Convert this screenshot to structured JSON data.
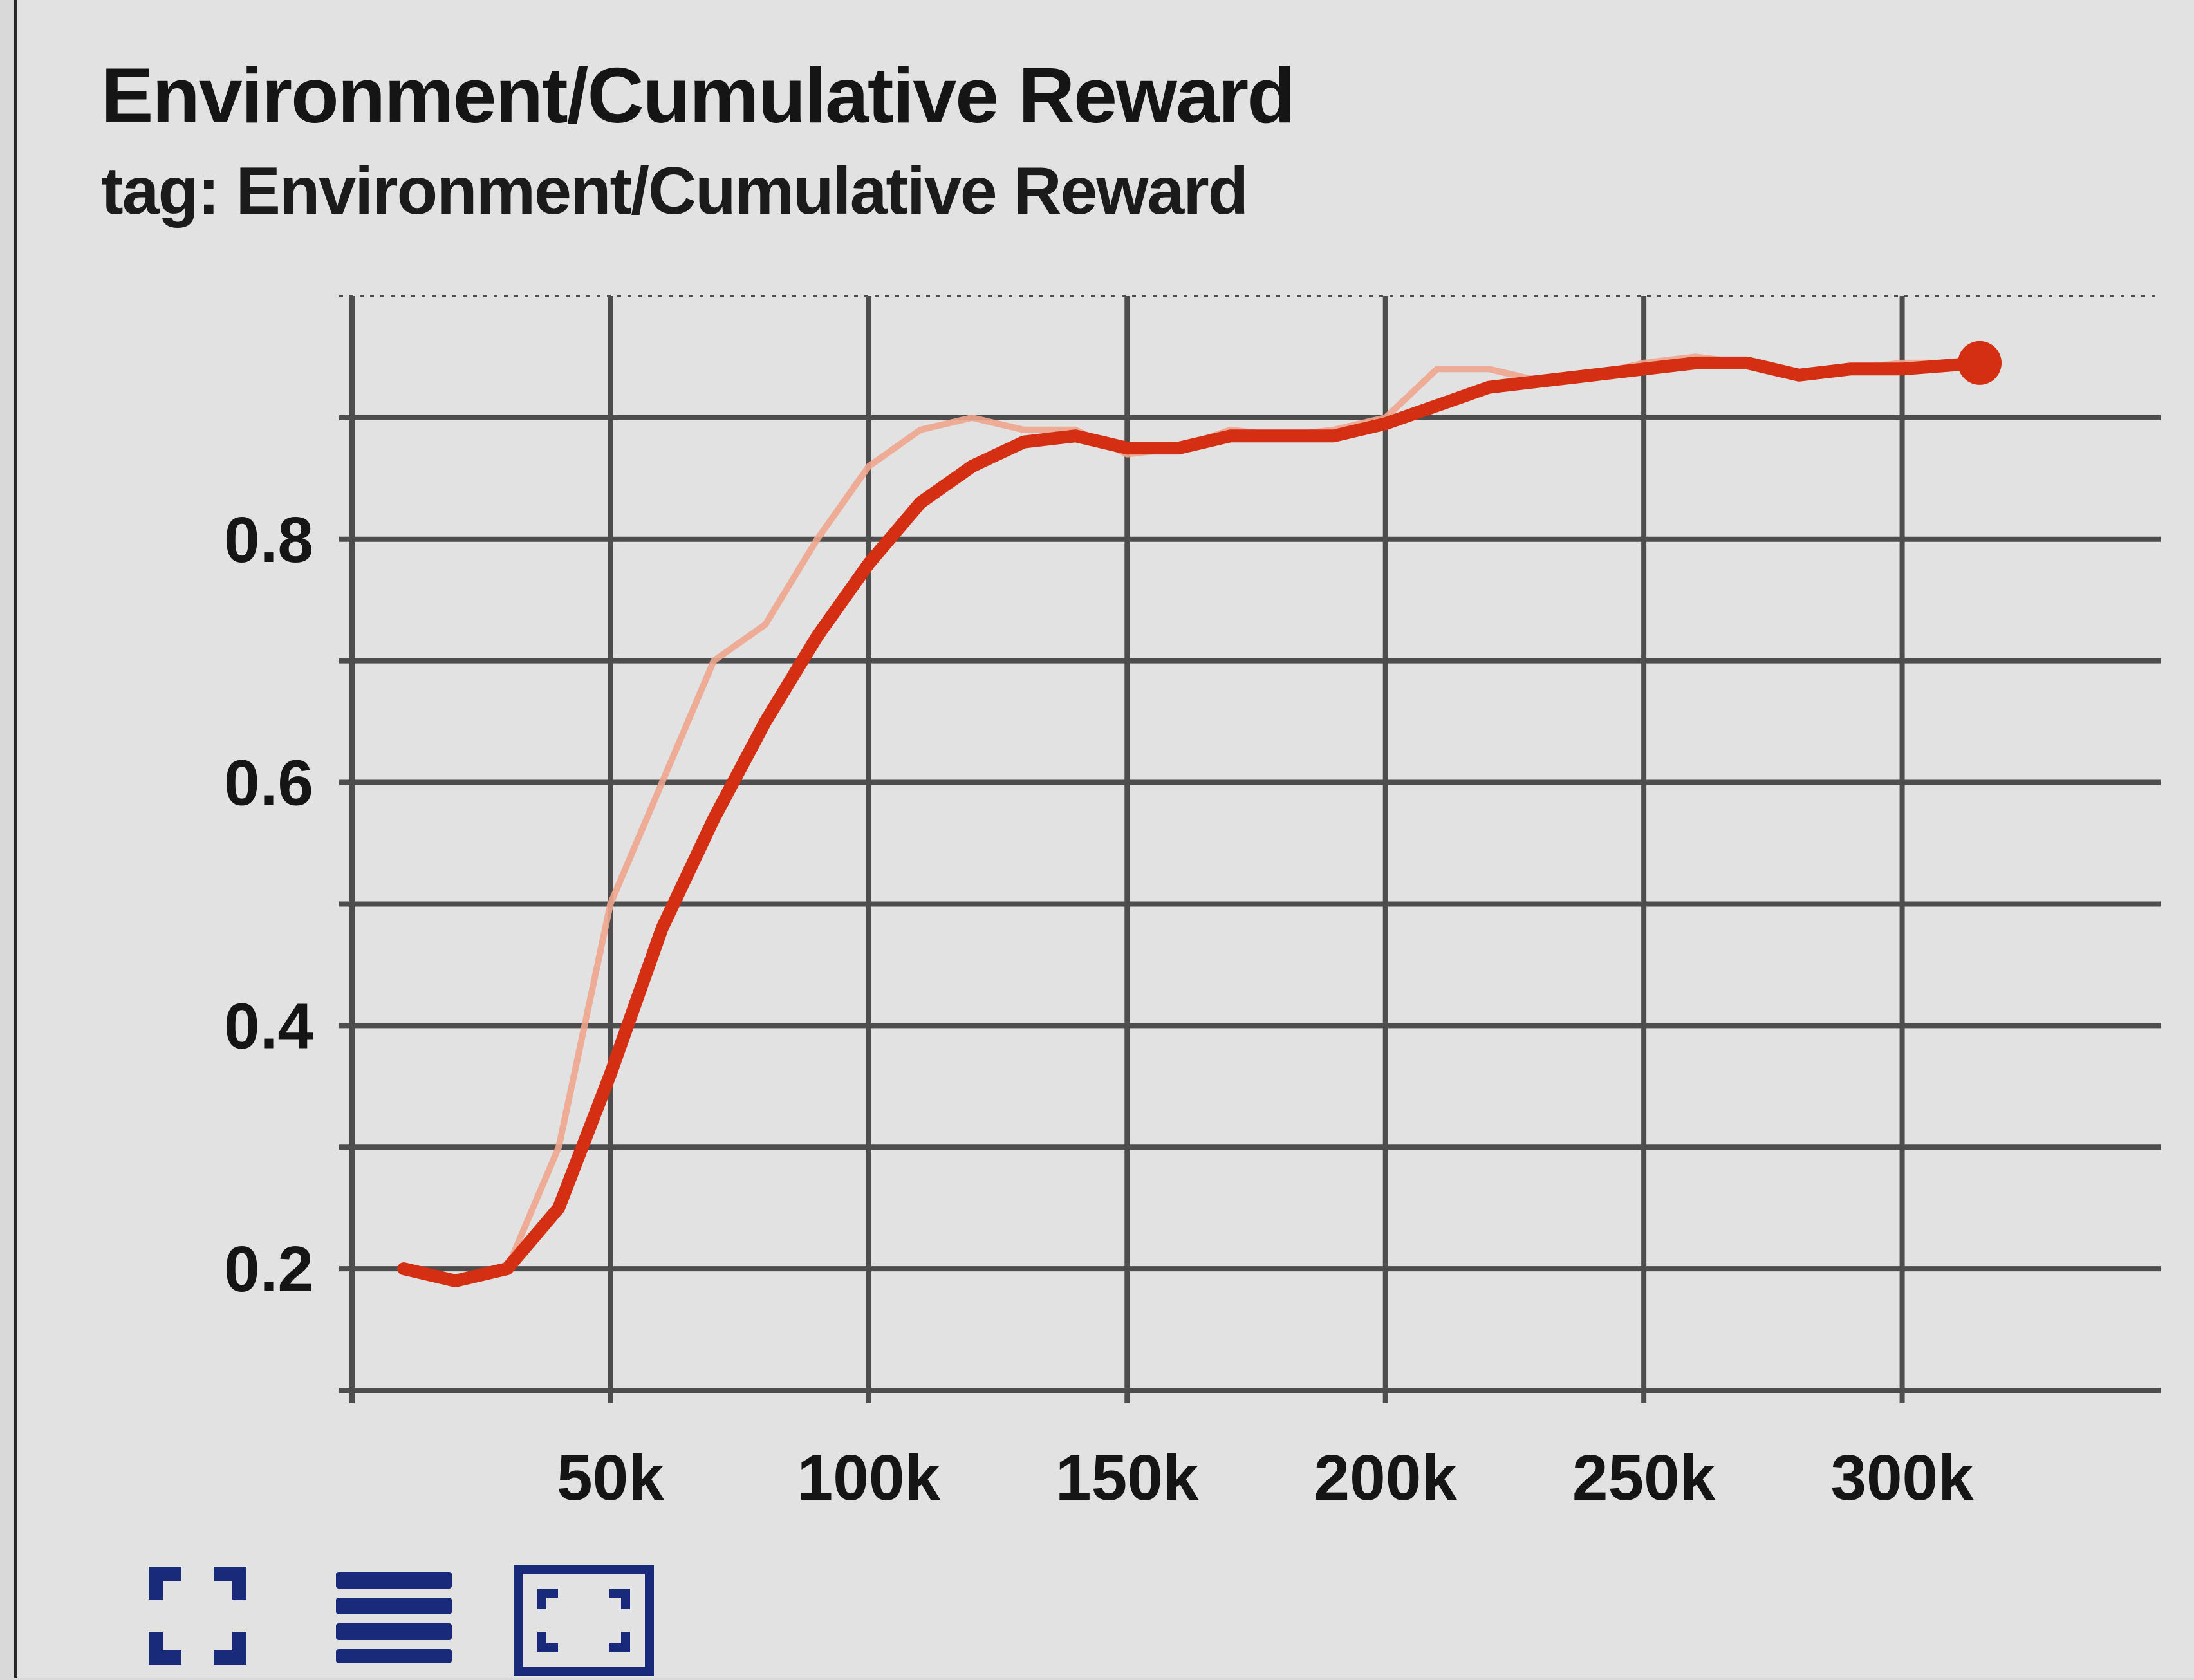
{
  "card": {
    "title": "Environment/Cumulative Reward",
    "subtitle": "tag: Environment/Cumulative Reward"
  },
  "toolbar": {
    "buttons": [
      {
        "icon": "expand-icon"
      },
      {
        "icon": "list-icon"
      },
      {
        "icon": "fit-domain-icon"
      }
    ]
  },
  "colors": {
    "smoothed": "#d42f12",
    "raw": "#f0a58e",
    "grid": "#4d4d4d",
    "icon": "#1a2a7a"
  },
  "chart_data": {
    "type": "line",
    "title": "Environment/Cumulative Reward",
    "xlim": [
      0,
      350000
    ],
    "ylim": [
      0.1,
      1.0
    ],
    "x_ticks": [
      50000,
      100000,
      150000,
      200000,
      250000,
      300000
    ],
    "x_tick_labels": [
      "50k",
      "100k",
      "150k",
      "200k",
      "250k",
      "300k"
    ],
    "y_ticks": [
      0.2,
      0.4,
      0.6,
      0.8
    ],
    "y_tick_labels": [
      "0.2",
      "0.4",
      "0.6",
      "0.8"
    ],
    "grid": true,
    "series": [
      {
        "style": "raw",
        "x": [
          10000,
          20000,
          30000,
          40000,
          50000,
          60000,
          70000,
          80000,
          90000,
          100000,
          110000,
          120000,
          130000,
          140000,
          150000,
          160000,
          170000,
          180000,
          190000,
          200000,
          210000,
          220000,
          230000,
          240000,
          250000,
          260000,
          270000,
          280000,
          290000,
          300000,
          315000
        ],
        "y": [
          0.2,
          0.19,
          0.2,
          0.3,
          0.5,
          0.6,
          0.7,
          0.73,
          0.8,
          0.86,
          0.89,
          0.9,
          0.89,
          0.89,
          0.87,
          0.875,
          0.89,
          0.885,
          0.89,
          0.9,
          0.94,
          0.94,
          0.93,
          0.935,
          0.945,
          0.95,
          0.945,
          0.935,
          0.94,
          0.945,
          0.945
        ]
      },
      {
        "style": "smoothed",
        "x": [
          10000,
          20000,
          30000,
          40000,
          50000,
          60000,
          70000,
          80000,
          90000,
          100000,
          110000,
          120000,
          130000,
          140000,
          150000,
          160000,
          170000,
          180000,
          190000,
          200000,
          210000,
          220000,
          230000,
          240000,
          250000,
          260000,
          270000,
          280000,
          290000,
          300000,
          315000
        ],
        "y": [
          0.2,
          0.19,
          0.2,
          0.25,
          0.36,
          0.48,
          0.57,
          0.65,
          0.72,
          0.78,
          0.83,
          0.86,
          0.88,
          0.885,
          0.875,
          0.875,
          0.885,
          0.885,
          0.885,
          0.895,
          0.91,
          0.925,
          0.93,
          0.935,
          0.94,
          0.945,
          0.945,
          0.935,
          0.94,
          0.94,
          0.945
        ]
      }
    ]
  }
}
